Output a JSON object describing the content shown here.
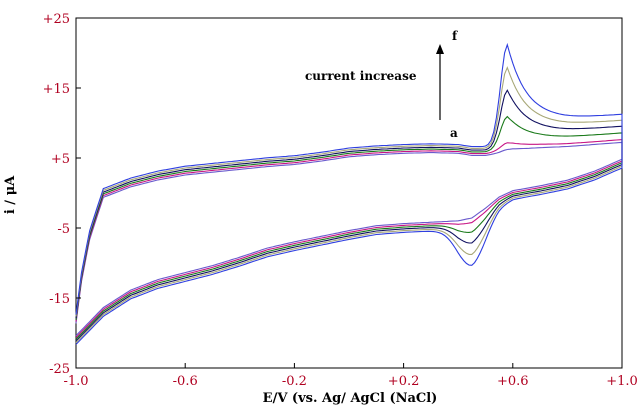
{
  "chart_data": {
    "type": "line",
    "title": "",
    "xlabel": "E/V (vs. Ag/ AgCl (NaCl)",
    "ylabel": "i / μA",
    "xlim": [
      -1.0,
      1.0
    ],
    "ylim": [
      -25,
      25
    ],
    "x_tick_labels": [
      "-1.0",
      "-0.6",
      "-0.2",
      "+0.2",
      "+0.6",
      "+1.0"
    ],
    "x_tick_values": [
      -1.0,
      -0.6,
      -0.2,
      0.2,
      0.6,
      1.0
    ],
    "y_tick_labels": [
      "+25",
      "+15",
      "+5",
      "-5",
      "-15",
      "-25"
    ],
    "y_tick_values": [
      25,
      15,
      5,
      -5,
      -15,
      -25
    ],
    "grid": false,
    "legend": "none",
    "annotations": {
      "current_increase": "current increase",
      "label_top": "f",
      "label_bottom": "a"
    },
    "curve_colors": [
      "#6a5acd",
      "#c71585",
      "#1a7a1a",
      "#101060",
      "#a8a878",
      "#2f3fe0"
    ],
    "forward_sweep": {
      "base_x": [
        -1.0,
        -0.98,
        -0.95,
        -0.9,
        -0.8,
        -0.7,
        -0.6,
        -0.5,
        -0.4,
        -0.3,
        -0.2,
        -0.1,
        0.0,
        0.1,
        0.2,
        0.3,
        0.4,
        0.45,
        0.5,
        0.55,
        0.6,
        0.7,
        0.8,
        0.9,
        1.0
      ],
      "base_y": [
        -18,
        -12,
        -6,
        0,
        1.5,
        2.5,
        3.2,
        3.6,
        4.0,
        4.4,
        4.7,
        5.2,
        5.8,
        6.1,
        6.3,
        6.4,
        6.3,
        6.0,
        6.0,
        6.3,
        6.7,
        7.0,
        7.2,
        7.5,
        7.8
      ],
      "peak_potential": 0.58,
      "peak_heights": [
        0.3,
        1.0,
        4.5,
        8.0,
        11.0,
        14.0
      ]
    },
    "reverse_sweep": {
      "base_x": [
        1.0,
        0.9,
        0.8,
        0.7,
        0.6,
        0.55,
        0.5,
        0.45,
        0.4,
        0.3,
        0.2,
        0.1,
        0.0,
        -0.1,
        -0.2,
        -0.3,
        -0.4,
        -0.5,
        -0.6,
        -0.7,
        -0.8,
        -0.9,
        -0.95,
        -1.0
      ],
      "base_y": [
        4.2,
        2.5,
        1.2,
        0.4,
        -0.3,
        -1.2,
        -2.8,
        -4.2,
        -4.6,
        -4.8,
        -5.0,
        -5.3,
        -6.0,
        -6.8,
        -7.6,
        -8.5,
        -9.8,
        -11.0,
        -12.0,
        -13.0,
        -14.5,
        -17.0,
        -19.0,
        -21.0
      ],
      "peak_potential": 0.45,
      "peak_heights": [
        0.0,
        0.4,
        1.5,
        2.8,
        4.2,
        5.5
      ]
    }
  }
}
